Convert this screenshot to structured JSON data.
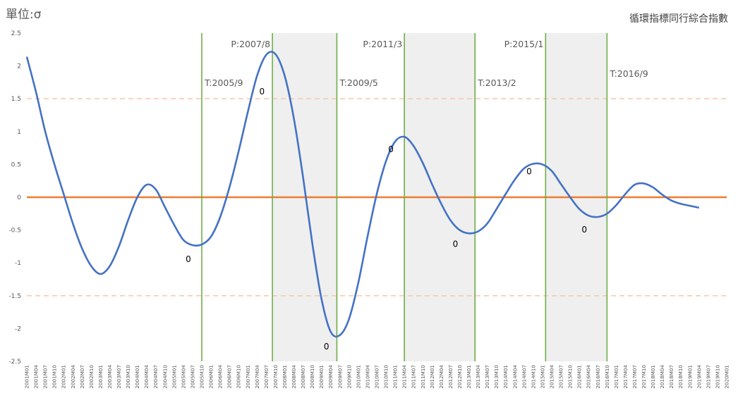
{
  "unit_label": "單位:σ",
  "chart_title": "循環指標同行綜合指數",
  "chart_data": {
    "type": "line",
    "title": "循環指標同行綜合指數",
    "ylabel": "單位:σ",
    "xlabel": "",
    "ylim": [
      -2.5,
      2.5
    ],
    "yticks": [
      2.5,
      2,
      1.5,
      1,
      0.5,
      0,
      -0.5,
      -1,
      -1.5,
      -2,
      -2.5
    ],
    "grid": false,
    "x_start": "2001M01",
    "x_end": "2020M01",
    "xtick_step_months": 3,
    "series": [
      {
        "color": "#4472C4",
        "points": [
          [
            "2001M01",
            2.14
          ],
          [
            "2001M04",
            1.6
          ],
          [
            "2001M07",
            1.0
          ],
          [
            "2001M10",
            0.5
          ],
          [
            "2002M01",
            0.05
          ],
          [
            "2002M04",
            -0.4
          ],
          [
            "2002M07",
            -0.78
          ],
          [
            "2002M10",
            -1.05
          ],
          [
            "2003M01",
            -1.17
          ],
          [
            "2003M04",
            -1.05
          ],
          [
            "2003M07",
            -0.75
          ],
          [
            "2003M10",
            -0.35
          ],
          [
            "2004M01",
            0.0
          ],
          [
            "2004M04",
            0.19
          ],
          [
            "2004M07",
            0.12
          ],
          [
            "2004M10",
            -0.15
          ],
          [
            "2005M01",
            -0.42
          ],
          [
            "2005M04",
            -0.65
          ],
          [
            "2005M07",
            -0.73
          ],
          [
            "2005M10",
            -0.72
          ],
          [
            "2006M01",
            -0.6
          ],
          [
            "2006M04",
            -0.3
          ],
          [
            "2006M07",
            0.15
          ],
          [
            "2006M10",
            0.7
          ],
          [
            "2007M01",
            1.3
          ],
          [
            "2007M04",
            1.85
          ],
          [
            "2007M07",
            2.17
          ],
          [
            "2007M10",
            2.18
          ],
          [
            "2008M01",
            1.85
          ],
          [
            "2008M04",
            1.2
          ],
          [
            "2008M07",
            0.3
          ],
          [
            "2008M10",
            -0.7
          ],
          [
            "2009M01",
            -1.55
          ],
          [
            "2009M04",
            -2.05
          ],
          [
            "2009M07",
            -2.1
          ],
          [
            "2009M10",
            -1.85
          ],
          [
            "2010M01",
            -1.3
          ],
          [
            "2010M04",
            -0.6
          ],
          [
            "2010M07",
            0.05
          ],
          [
            "2010M10",
            0.55
          ],
          [
            "2011M01",
            0.85
          ],
          [
            "2011M04",
            0.92
          ],
          [
            "2011M07",
            0.78
          ],
          [
            "2011M10",
            0.52
          ],
          [
            "2012M01",
            0.2
          ],
          [
            "2012M04",
            -0.1
          ],
          [
            "2012M07",
            -0.35
          ],
          [
            "2012M10",
            -0.5
          ],
          [
            "2013M01",
            -0.55
          ],
          [
            "2013M04",
            -0.52
          ],
          [
            "2013M07",
            -0.4
          ],
          [
            "2013M10",
            -0.18
          ],
          [
            "2014M01",
            0.05
          ],
          [
            "2014M04",
            0.27
          ],
          [
            "2014M07",
            0.44
          ],
          [
            "2014M10",
            0.51
          ],
          [
            "2015M01",
            0.5
          ],
          [
            "2015M04",
            0.4
          ],
          [
            "2015M07",
            0.2
          ],
          [
            "2015M10",
            0.0
          ],
          [
            "2016M01",
            -0.18
          ],
          [
            "2016M04",
            -0.28
          ],
          [
            "2016M07",
            -0.3
          ],
          [
            "2016M10",
            -0.25
          ],
          [
            "2017M01",
            -0.12
          ],
          [
            "2017M04",
            0.05
          ],
          [
            "2017M07",
            0.19
          ],
          [
            "2017M10",
            0.21
          ],
          [
            "2018M01",
            0.15
          ],
          [
            "2018M04",
            0.04
          ],
          [
            "2018M07",
            -0.05
          ],
          [
            "2018M10",
            -0.1
          ],
          [
            "2019M01",
            -0.13
          ],
          [
            "2019M04",
            -0.16
          ]
        ]
      }
    ],
    "reference_lines": [
      {
        "y": 0,
        "color": "#ED7D31",
        "style": "solid"
      },
      {
        "y": 1.5,
        "color": "#F8CBAD",
        "style": "dashed"
      },
      {
        "y": -1.5,
        "color": "#F8CBAD",
        "style": "dashed"
      }
    ],
    "turning_points": [
      {
        "date": "2005M10",
        "label": "T:2005/9"
      },
      {
        "date": "2007M09",
        "label": "P:2007/8"
      },
      {
        "date": "2009M06",
        "label": "T:2009/5"
      },
      {
        "date": "2011M04",
        "label": "P:2011/3"
      },
      {
        "date": "2013M03",
        "label": "T:2013/2"
      },
      {
        "date": "2015M02",
        "label": "P:2015/1"
      },
      {
        "date": "2016M10",
        "label": "T:2016/9"
      }
    ],
    "shaded_ranges": [
      [
        "2007M09",
        "2009M06"
      ],
      [
        "2011M04",
        "2013M03"
      ],
      [
        "2015M02",
        "2016M10"
      ]
    ],
    "vertical_line_color": "#70AD47",
    "shade_color": "#EFEFEF",
    "point_labels": [
      {
        "date": "2005M07",
        "y": -0.73,
        "text": "0"
      },
      {
        "date": "2007M07",
        "y": 2.17,
        "text": "0"
      },
      {
        "date": "2009M04",
        "y": -2.05,
        "text": "0"
      },
      {
        "date": "2011M01",
        "y": 0.85,
        "text": "0"
      },
      {
        "date": "2012M10",
        "y": -0.5,
        "text": "0"
      },
      {
        "date": "2014M10",
        "y": 0.51,
        "text": "0"
      },
      {
        "date": "2016M04",
        "y": -0.28,
        "text": "0"
      }
    ]
  }
}
